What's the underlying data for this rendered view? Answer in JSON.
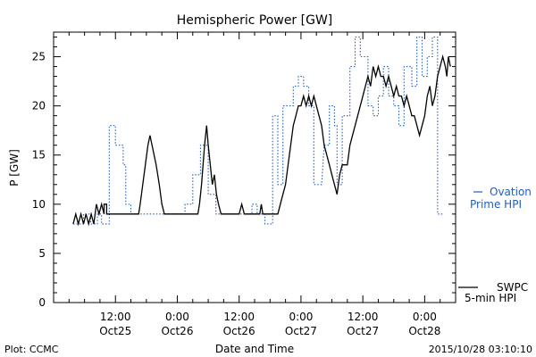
{
  "chart_data": {
    "type": "line",
    "title": "Hemispheric Power [GW]",
    "xlabel": "Date and Time",
    "ylabel": "P [GW]",
    "ylim": [
      0,
      27.5
    ],
    "xlim": [
      0,
      78
    ],
    "yticks": [
      0,
      5,
      10,
      15,
      20,
      25
    ],
    "xticks": [
      {
        "x": 12,
        "line1": "12:00",
        "line2": "Oct25"
      },
      {
        "x": 24,
        "line1": "0:00",
        "line2": "Oct26"
      },
      {
        "x": 36,
        "line1": "12:00",
        "line2": "Oct26"
      },
      {
        "x": 48,
        "line1": "0:00",
        "line2": "Oct27"
      },
      {
        "x": 60,
        "line1": "12:00",
        "line2": "Oct27"
      },
      {
        "x": 72,
        "line1": "0:00",
        "line2": "Oct28"
      }
    ],
    "grid": false,
    "series": [
      {
        "name": "SWPC 5-min HPI",
        "color": "#000000",
        "style": "solid",
        "points": [
          [
            3.8,
            8
          ],
          [
            4.3,
            9
          ],
          [
            4.8,
            8
          ],
          [
            5.3,
            9
          ],
          [
            5.8,
            8
          ],
          [
            6.3,
            9
          ],
          [
            6.8,
            8
          ],
          [
            7.3,
            9
          ],
          [
            7.8,
            8
          ],
          [
            8.3,
            10
          ],
          [
            8.8,
            9
          ],
          [
            9.3,
            10
          ],
          [
            9.8,
            9
          ],
          [
            9.8,
            10
          ],
          [
            10.3,
            10
          ],
          [
            10.3,
            9
          ],
          [
            16.5,
            9
          ],
          [
            16.8,
            10
          ],
          [
            17.3,
            12
          ],
          [
            17.8,
            14
          ],
          [
            18.3,
            16
          ],
          [
            18.7,
            17
          ],
          [
            19.1,
            16
          ],
          [
            19.5,
            15
          ],
          [
            19.9,
            14
          ],
          [
            20.5,
            12
          ],
          [
            21.0,
            10
          ],
          [
            21.5,
            9
          ],
          [
            28.0,
            9
          ],
          [
            28.3,
            10
          ],
          [
            28.7,
            12
          ],
          [
            29.0,
            14
          ],
          [
            29.3,
            16
          ],
          [
            29.7,
            18
          ],
          [
            30.0,
            16
          ],
          [
            30.4,
            14
          ],
          [
            30.8,
            12
          ],
          [
            31.2,
            13
          ],
          [
            31.6,
            11
          ],
          [
            32.0,
            10
          ],
          [
            32.5,
            9
          ],
          [
            36.0,
            9
          ],
          [
            36.5,
            10
          ],
          [
            37.0,
            9
          ],
          [
            40.0,
            9
          ],
          [
            40.3,
            10
          ],
          [
            40.6,
            9
          ],
          [
            43.5,
            9
          ],
          [
            44.0,
            10
          ],
          [
            44.5,
            11
          ],
          [
            45.0,
            12
          ],
          [
            45.5,
            14
          ],
          [
            46.0,
            16
          ],
          [
            46.5,
            18
          ],
          [
            47.0,
            19
          ],
          [
            47.5,
            20
          ],
          [
            48.0,
            20
          ],
          [
            48.5,
            21
          ],
          [
            49.0,
            20
          ],
          [
            49.5,
            21
          ],
          [
            50.0,
            20
          ],
          [
            50.5,
            21
          ],
          [
            51.0,
            20
          ],
          [
            51.5,
            19
          ],
          [
            52.0,
            18
          ],
          [
            52.5,
            16
          ],
          [
            53.0,
            15
          ],
          [
            53.5,
            14
          ],
          [
            54.0,
            13
          ],
          [
            54.5,
            12
          ],
          [
            55.0,
            11
          ],
          [
            55.5,
            13
          ],
          [
            56.0,
            14
          ],
          [
            57.0,
            14
          ],
          [
            57.5,
            16
          ],
          [
            58.0,
            17
          ],
          [
            58.5,
            18
          ],
          [
            59.0,
            19
          ],
          [
            59.5,
            20
          ],
          [
            60.0,
            21
          ],
          [
            60.5,
            22
          ],
          [
            61.0,
            23
          ],
          [
            61.5,
            22
          ],
          [
            62.0,
            24
          ],
          [
            62.5,
            23
          ],
          [
            63.0,
            24
          ],
          [
            63.5,
            23
          ],
          [
            64.0,
            23
          ],
          [
            64.5,
            22
          ],
          [
            65.0,
            23
          ],
          [
            65.5,
            22
          ],
          [
            66.0,
            21
          ],
          [
            66.5,
            22
          ],
          [
            67.0,
            21
          ],
          [
            67.5,
            21
          ],
          [
            68.0,
            20
          ],
          [
            68.5,
            21
          ],
          [
            69.0,
            20
          ],
          [
            69.5,
            19
          ],
          [
            70.0,
            19
          ],
          [
            70.5,
            18
          ],
          [
            71.0,
            17
          ],
          [
            71.5,
            18
          ],
          [
            72.0,
            19
          ],
          [
            72.5,
            21
          ],
          [
            73.0,
            22
          ],
          [
            73.5,
            20
          ],
          [
            74.0,
            21
          ],
          [
            74.5,
            23
          ],
          [
            75.0,
            24
          ],
          [
            75.5,
            25
          ],
          [
            76.0,
            24
          ],
          [
            76.3,
            23
          ],
          [
            76.6,
            25
          ],
          [
            77.0,
            24
          ]
        ]
      },
      {
        "name": "Ovation Prime HPI",
        "color": "#1f5fbf",
        "style": "dotted",
        "points": [
          [
            3.8,
            8
          ],
          [
            5.8,
            8
          ],
          [
            5.8,
            9
          ],
          [
            7.2,
            9
          ],
          [
            7.2,
            8
          ],
          [
            8.5,
            8
          ],
          [
            8.5,
            9
          ],
          [
            9.3,
            9
          ],
          [
            9.3,
            8
          ],
          [
            10.8,
            8
          ],
          [
            10.8,
            18
          ],
          [
            12.0,
            18
          ],
          [
            12.0,
            16
          ],
          [
            13.5,
            16
          ],
          [
            13.5,
            14
          ],
          [
            14.0,
            14
          ],
          [
            14.0,
            10
          ],
          [
            15.0,
            10
          ],
          [
            15.0,
            9
          ],
          [
            25.5,
            9
          ],
          [
            25.5,
            10
          ],
          [
            27.0,
            10
          ],
          [
            27.0,
            13
          ],
          [
            28.5,
            13
          ],
          [
            28.5,
            16
          ],
          [
            30.0,
            16
          ],
          [
            30.0,
            11
          ],
          [
            31.5,
            11
          ],
          [
            31.5,
            9
          ],
          [
            38.5,
            9
          ],
          [
            38.5,
            10
          ],
          [
            39.5,
            10
          ],
          [
            39.5,
            9
          ],
          [
            41.0,
            9
          ],
          [
            41.0,
            8
          ],
          [
            42.5,
            8
          ],
          [
            42.5,
            19
          ],
          [
            43.5,
            19
          ],
          [
            43.5,
            12
          ],
          [
            44.5,
            12
          ],
          [
            44.5,
            20
          ],
          [
            46.5,
            20
          ],
          [
            46.5,
            22
          ],
          [
            47.5,
            22
          ],
          [
            47.5,
            23
          ],
          [
            48.5,
            23
          ],
          [
            48.5,
            22
          ],
          [
            49.5,
            22
          ],
          [
            49.5,
            20
          ],
          [
            50.5,
            20
          ],
          [
            50.5,
            12
          ],
          [
            52.0,
            12
          ],
          [
            52.5,
            16
          ],
          [
            53.5,
            16
          ],
          [
            53.5,
            20
          ],
          [
            54.5,
            20
          ],
          [
            54.5,
            18
          ],
          [
            55.0,
            18
          ],
          [
            55.0,
            12
          ],
          [
            56.0,
            12
          ],
          [
            56.0,
            19
          ],
          [
            57.5,
            19
          ],
          [
            57.5,
            24
          ],
          [
            58.5,
            24
          ],
          [
            58.5,
            27
          ],
          [
            59.5,
            27
          ],
          [
            59.5,
            25
          ],
          [
            61.0,
            25
          ],
          [
            61.0,
            20
          ],
          [
            62.0,
            20
          ],
          [
            62.0,
            19
          ],
          [
            63.0,
            19
          ],
          [
            63.0,
            21
          ],
          [
            64.0,
            21
          ],
          [
            64.0,
            24
          ],
          [
            65.0,
            24
          ],
          [
            65.0,
            21
          ],
          [
            66.0,
            21
          ],
          [
            66.0,
            20
          ],
          [
            67.0,
            20
          ],
          [
            67.0,
            18
          ],
          [
            68.0,
            18
          ],
          [
            68.0,
            24
          ],
          [
            69.5,
            24
          ],
          [
            69.5,
            22
          ],
          [
            70.5,
            22
          ],
          [
            70.5,
            27
          ],
          [
            71.5,
            27
          ],
          [
            71.5,
            23
          ],
          [
            72.5,
            23
          ],
          [
            72.5,
            25
          ],
          [
            73.5,
            25
          ],
          [
            73.5,
            27
          ],
          [
            74.5,
            27
          ],
          [
            74.5,
            9
          ],
          [
            75.5,
            9
          ]
        ]
      }
    ]
  },
  "legend": {
    "ovation_line1": "Ovation",
    "ovation_line2": "Prime HPI",
    "swpc_line1": "SWPC",
    "swpc_line2": "5-min HPI"
  },
  "footer": {
    "left": "Plot: CCMC",
    "right": "2015/10/28 03:10:10"
  },
  "colors": {
    "ovation": "#1f5fbf",
    "swpc": "#000000"
  }
}
